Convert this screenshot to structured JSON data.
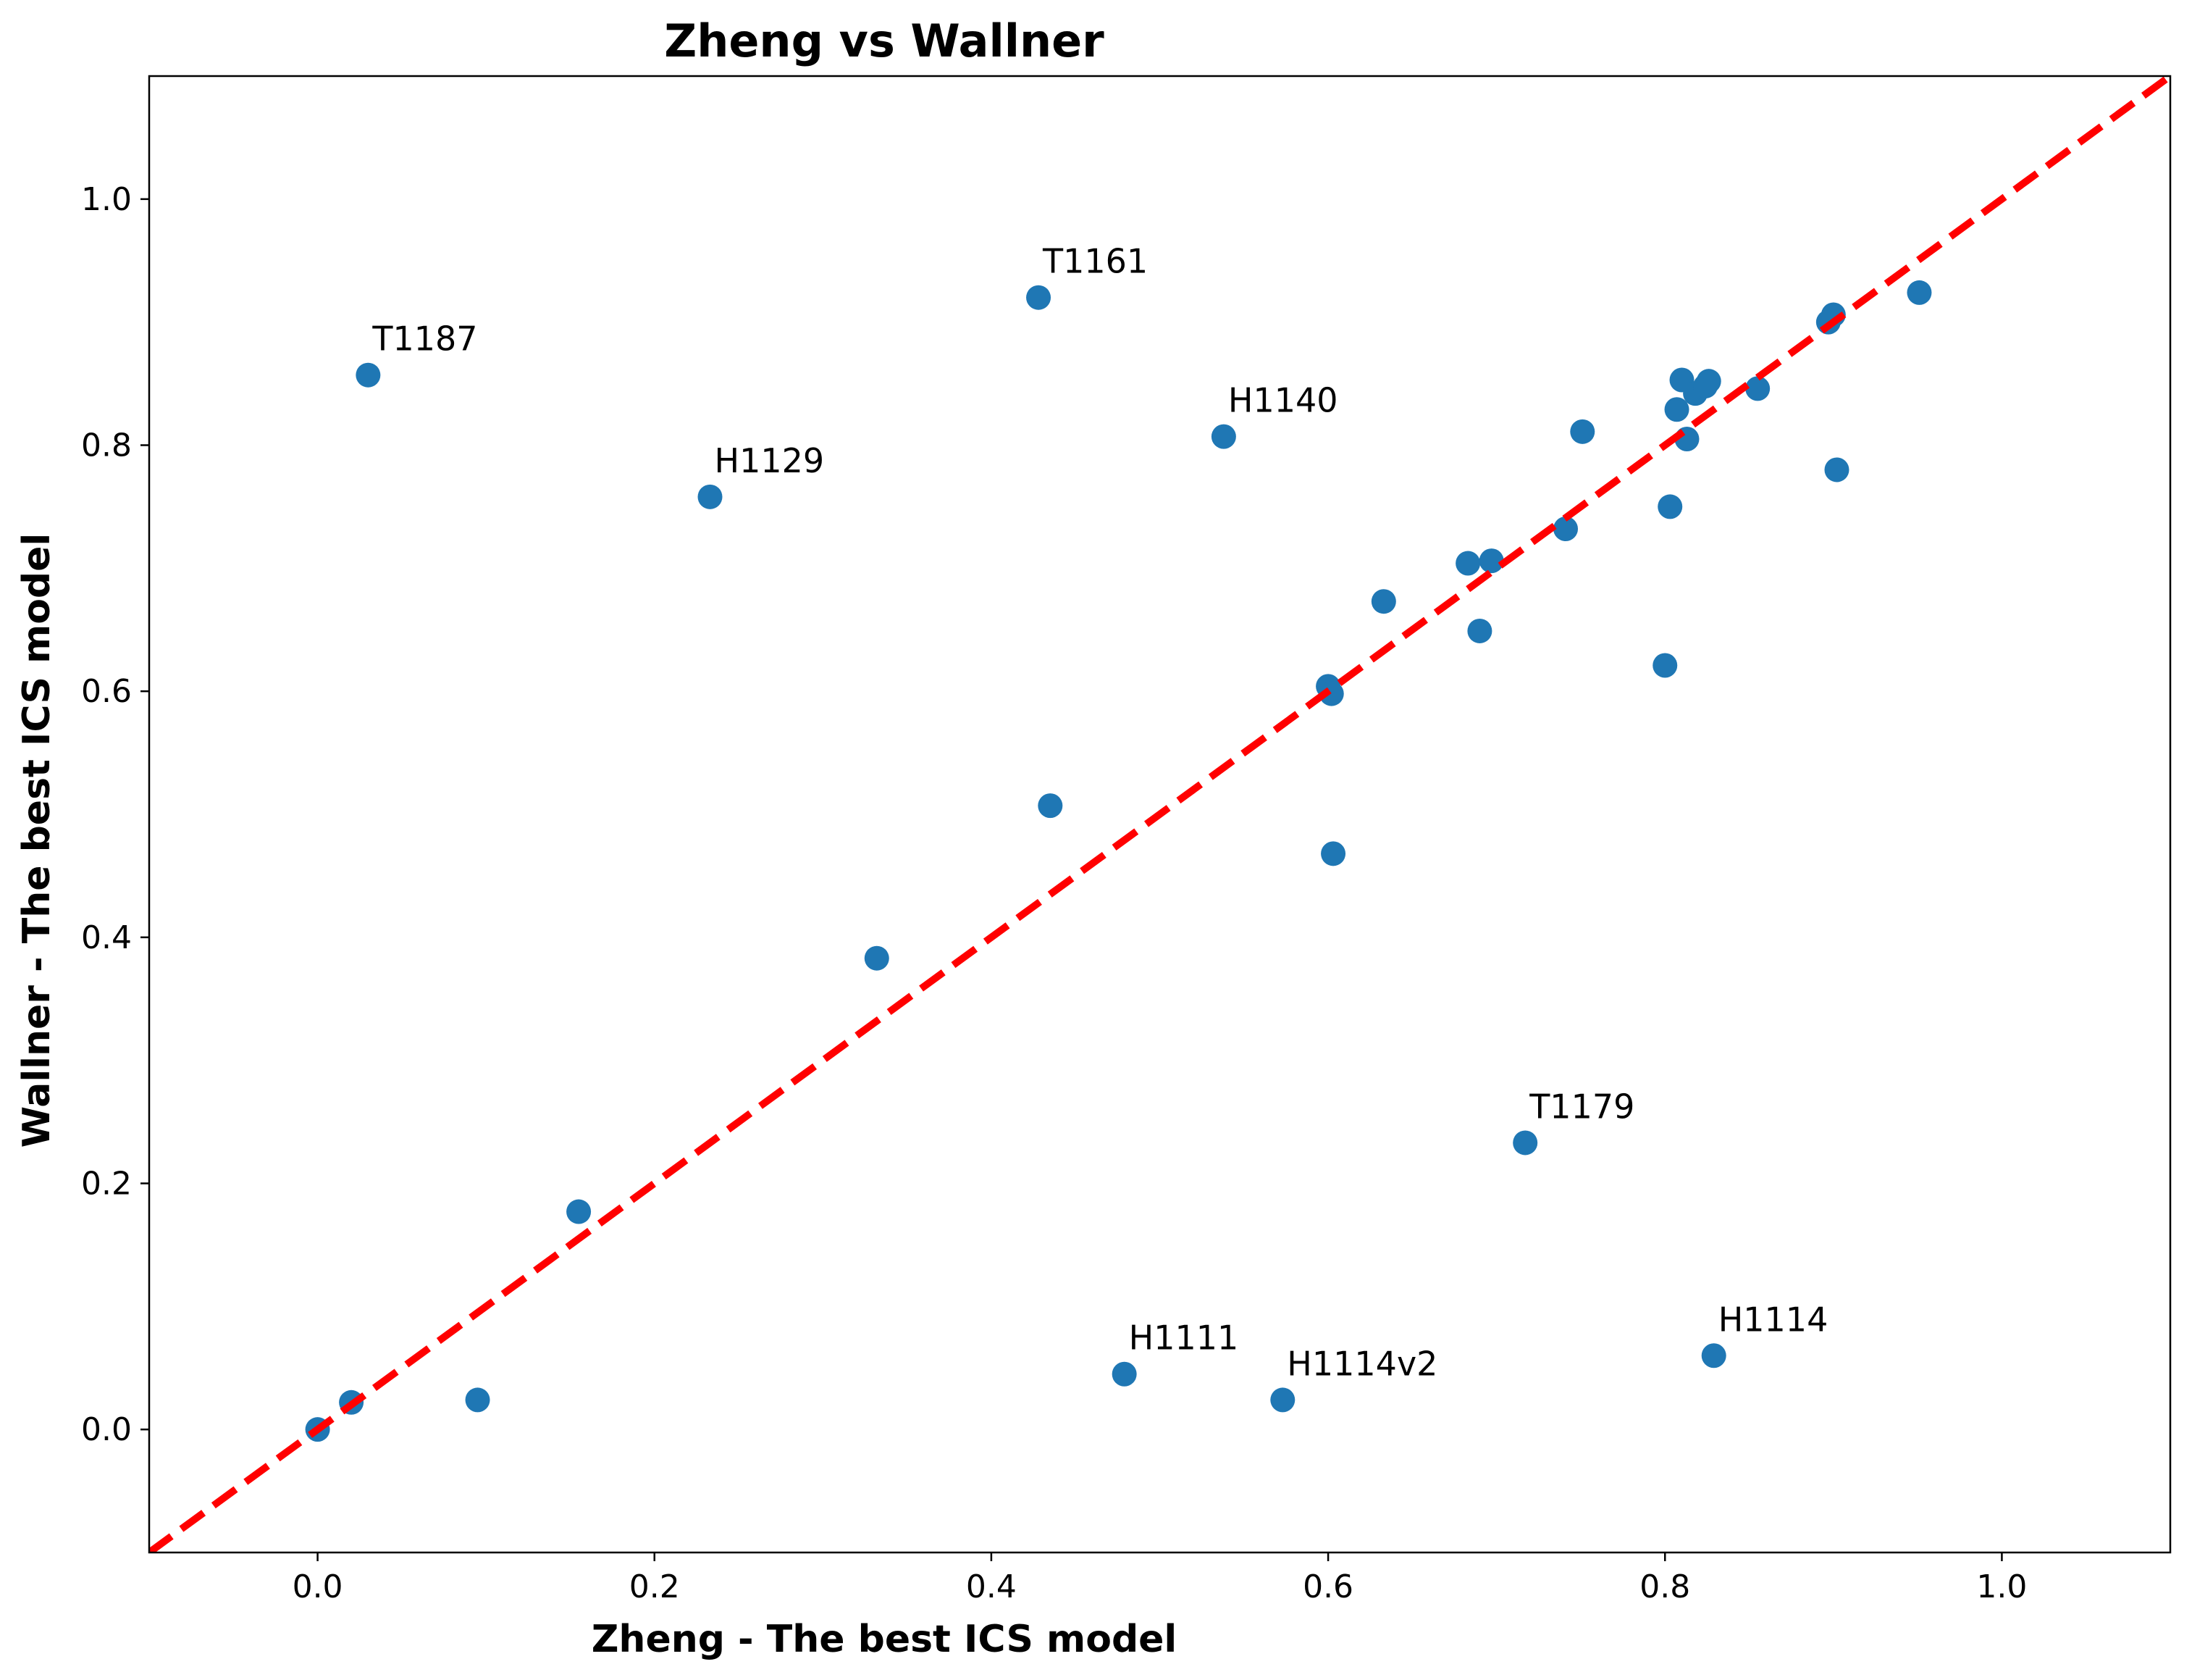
{
  "chart_data": {
    "type": "scatter",
    "title": "Zheng vs Wallner",
    "xlabel": "Zheng - The best ICS model",
    "ylabel": "Wallner - The best ICS model",
    "xlim": [
      -0.1,
      1.1
    ],
    "ylim": [
      -0.1,
      1.1
    ],
    "xticks": [
      "0.0",
      "0.2",
      "0.4",
      "0.6",
      "0.8",
      "1.0"
    ],
    "yticks": [
      "0.0",
      "0.2",
      "0.4",
      "0.6",
      "0.8",
      "1.0"
    ],
    "grid": false,
    "colors": {
      "points": "#1f77b4",
      "diagonal": "#ff0000"
    },
    "diagonal": {
      "from": [
        -0.1,
        -0.1
      ],
      "to": [
        1.1,
        1.1
      ],
      "style": "dashed"
    },
    "points": [
      {
        "x": 0.0,
        "y": 0.0
      },
      {
        "x": 0.02,
        "y": 0.022
      },
      {
        "x": 0.095,
        "y": 0.024
      },
      {
        "x": 0.155,
        "y": 0.177
      },
      {
        "x": 0.332,
        "y": 0.383
      },
      {
        "x": 0.435,
        "y": 0.507
      },
      {
        "x": 0.6,
        "y": 0.604
      },
      {
        "x": 0.602,
        "y": 0.598
      },
      {
        "x": 0.603,
        "y": 0.468
      },
      {
        "x": 0.633,
        "y": 0.673
      },
      {
        "x": 0.683,
        "y": 0.704
      },
      {
        "x": 0.69,
        "y": 0.649
      },
      {
        "x": 0.697,
        "y": 0.706
      },
      {
        "x": 0.741,
        "y": 0.732
      },
      {
        "x": 0.751,
        "y": 0.811
      },
      {
        "x": 0.8,
        "y": 0.621
      },
      {
        "x": 0.803,
        "y": 0.75
      },
      {
        "x": 0.807,
        "y": 0.829
      },
      {
        "x": 0.81,
        "y": 0.853
      },
      {
        "x": 0.813,
        "y": 0.805
      },
      {
        "x": 0.818,
        "y": 0.842
      },
      {
        "x": 0.824,
        "y": 0.848
      },
      {
        "x": 0.826,
        "y": 0.852
      },
      {
        "x": 0.855,
        "y": 0.846
      },
      {
        "x": 0.897,
        "y": 0.9
      },
      {
        "x": 0.9,
        "y": 0.906
      },
      {
        "x": 0.902,
        "y": 0.78
      },
      {
        "x": 0.951,
        "y": 0.924
      },
      {
        "x": 0.03,
        "y": 0.857,
        "label": "T1187"
      },
      {
        "x": 0.428,
        "y": 0.92,
        "label": "T1161"
      },
      {
        "x": 0.538,
        "y": 0.807,
        "label": "H1140"
      },
      {
        "x": 0.233,
        "y": 0.758,
        "label": "H1129"
      },
      {
        "x": 0.717,
        "y": 0.233,
        "label": "T1179"
      },
      {
        "x": 0.479,
        "y": 0.045,
        "label": "H1111"
      },
      {
        "x": 0.573,
        "y": 0.024,
        "label": "H1114v2"
      },
      {
        "x": 0.829,
        "y": 0.06,
        "label": "H1114"
      }
    ]
  }
}
